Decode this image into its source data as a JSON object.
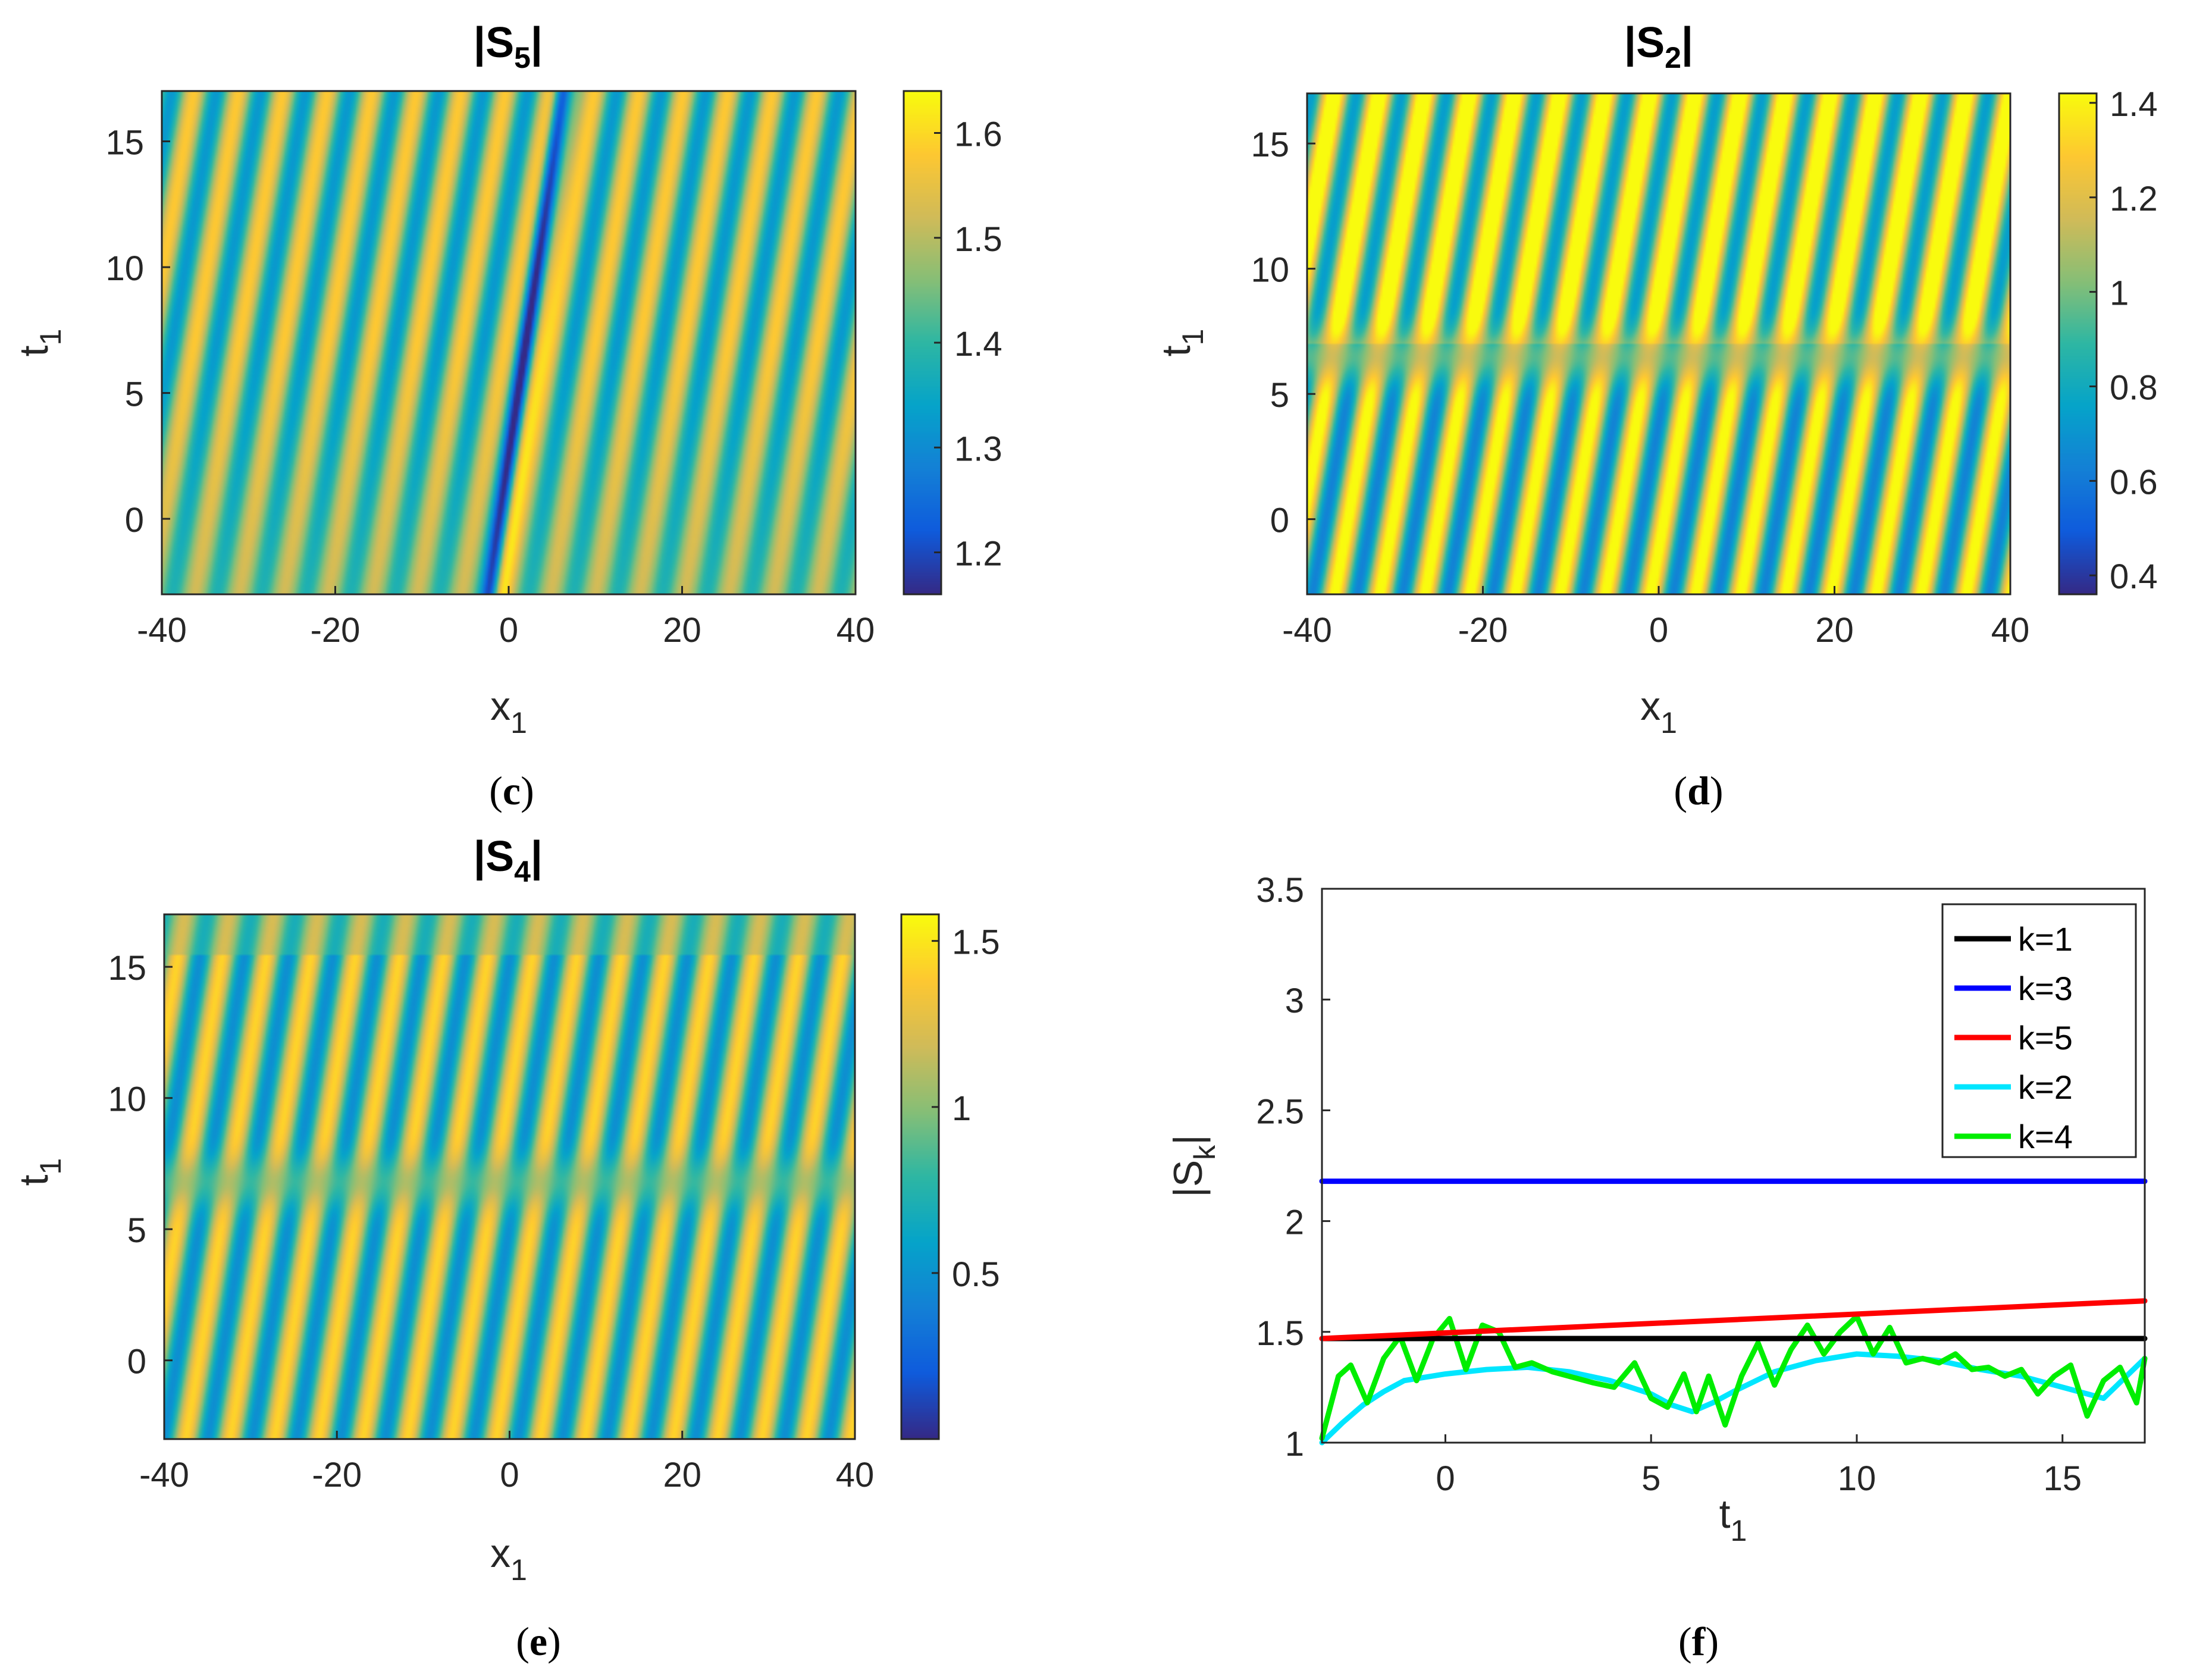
{
  "colors": {
    "parula": [
      "#352a87",
      "#0f5cdd",
      "#1481d6",
      "#06a4ca",
      "#2eb7a4",
      "#87bf77",
      "#d1bb59",
      "#fec832",
      "#f9fb0e"
    ],
    "axis": "#262626"
  },
  "chart_data": [
    {
      "type": "heatmap",
      "panel": "(c)",
      "panel_letter": "c",
      "title_base": "|S",
      "title_sub": "5",
      "title_end": "|",
      "x_label_base": "x",
      "x_label_sub": "1",
      "y_label_base": "t",
      "y_label_sub": "1",
      "x_range": [
        -40,
        40
      ],
      "y_range": [
        -3,
        17
      ],
      "x_ticks": [
        -40,
        -20,
        0,
        20,
        40
      ],
      "x_tick_labels": [
        "-40",
        "-20",
        "0",
        "20",
        "40"
      ],
      "y_ticks": [
        0,
        5,
        10,
        15
      ],
      "y_tick_labels": [
        "0",
        "5",
        "10",
        "15"
      ],
      "colorbar": {
        "range": [
          1.16,
          1.64
        ],
        "ticks": [
          1.2,
          1.3,
          1.4,
          1.5,
          1.6
        ],
        "tick_labels": [
          "1.2",
          "1.3",
          "1.4",
          "1.5",
          "1.6"
        ]
      },
      "field": {
        "base": 1.45,
        "amp": 0.13,
        "dark_line": true
      }
    },
    {
      "type": "heatmap",
      "panel": "(d)",
      "panel_letter": "d",
      "title_base": "|S",
      "title_sub": "2",
      "title_end": "|",
      "x_label_base": "x",
      "x_label_sub": "1",
      "y_label_base": "t",
      "y_label_sub": "1",
      "x_range": [
        -40,
        40
      ],
      "y_range": [
        -3,
        17
      ],
      "x_ticks": [
        -40,
        -20,
        0,
        20,
        40
      ],
      "x_tick_labels": [
        "-40",
        "-20",
        "0",
        "20",
        "40"
      ],
      "y_ticks": [
        0,
        5,
        10,
        15
      ],
      "y_tick_labels": [
        "0",
        "5",
        "10",
        "15"
      ],
      "colorbar": {
        "range": [
          0.36,
          1.42
        ],
        "ticks": [
          0.4,
          0.6,
          0.8,
          1.0,
          1.2,
          1.4
        ],
        "tick_labels": [
          "0.4",
          "0.6",
          "0.8",
          "1",
          "1.2",
          "1.4"
        ]
      },
      "field": {
        "base": 1.0,
        "amp": 0.42,
        "dark_line": false
      }
    },
    {
      "type": "heatmap",
      "panel": "(e)",
      "panel_letter": "e",
      "title_base": "|S",
      "title_sub": "4",
      "title_end": "|",
      "x_label_base": "x",
      "x_label_sub": "1",
      "y_label_base": "t",
      "y_label_sub": "1",
      "x_range": [
        -40,
        40
      ],
      "y_range": [
        -3,
        17
      ],
      "x_ticks": [
        -40,
        -20,
        0,
        20,
        40
      ],
      "x_tick_labels": [
        "-40",
        "-20",
        "0",
        "20",
        "40"
      ],
      "y_ticks": [
        0,
        5,
        10,
        15
      ],
      "y_tick_labels": [
        "0",
        "5",
        "10",
        "15"
      ],
      "colorbar": {
        "range": [
          0.0,
          1.58
        ],
        "ticks": [
          0.5,
          1.0,
          1.5
        ],
        "tick_labels": [
          "0.5",
          "1",
          "1.5"
        ]
      },
      "field": {
        "base": 0.95,
        "amp": 0.48,
        "dark_line": false
      }
    },
    {
      "type": "line",
      "panel": "(f)",
      "panel_letter": "f",
      "x_label_base": "t",
      "x_label_sub": "1",
      "y_label_base": "|S",
      "y_label_sub": "k",
      "y_label_end": "|",
      "xlim": [
        -3,
        17
      ],
      "ylim": [
        1,
        3.5
      ],
      "x_ticks": [
        0,
        5,
        10,
        15
      ],
      "x_tick_labels": [
        "0",
        "5",
        "10",
        "15"
      ],
      "y_ticks": [
        1,
        1.5,
        2,
        2.5,
        3,
        3.5
      ],
      "y_tick_labels": [
        "1",
        "1.5",
        "2",
        "2.5",
        "3",
        "3.5"
      ],
      "legend_position": "top-right",
      "series": [
        {
          "name": "k=1",
          "color": "#000000",
          "x": [
            -3,
            17
          ],
          "y": [
            1.47,
            1.47
          ]
        },
        {
          "name": "k=3",
          "color": "#0000ff",
          "x": [
            -3,
            17
          ],
          "y": [
            2.18,
            2.18
          ]
        },
        {
          "name": "k=5",
          "color": "#ff0000",
          "x": [
            -3,
            17
          ],
          "y": [
            1.47,
            1.64
          ]
        },
        {
          "name": "k=2",
          "color": "#00e6ff",
          "x": [
            -3,
            -2.5,
            -2,
            -1.5,
            -1,
            0,
            1,
            2,
            3,
            4,
            5,
            5.5,
            6,
            6.5,
            7,
            8,
            9,
            10,
            11,
            12,
            13,
            14,
            15,
            16,
            17
          ],
          "y": [
            1.0,
            1.09,
            1.17,
            1.23,
            1.28,
            1.31,
            1.33,
            1.34,
            1.32,
            1.28,
            1.22,
            1.17,
            1.14,
            1.18,
            1.23,
            1.32,
            1.37,
            1.4,
            1.39,
            1.37,
            1.33,
            1.3,
            1.25,
            1.2,
            1.38
          ]
        },
        {
          "name": "k=4",
          "color": "#00ee00",
          "x": [
            -3,
            -2.6,
            -2.3,
            -1.9,
            -1.5,
            -1.1,
            -0.7,
            -0.3,
            0.1,
            0.5,
            0.9,
            1.3,
            1.7,
            2.1,
            2.6,
            3.0,
            3.6,
            4.1,
            4.6,
            5.0,
            5.4,
            5.8,
            6.1,
            6.4,
            6.8,
            7.2,
            7.6,
            8.0,
            8.4,
            8.8,
            9.2,
            9.6,
            10.0,
            10.4,
            10.8,
            11.2,
            11.6,
            12.0,
            12.4,
            12.8,
            13.2,
            13.6,
            14.0,
            14.4,
            14.8,
            15.2,
            15.6,
            16.0,
            16.4,
            16.8,
            17.0
          ],
          "y": [
            1.02,
            1.3,
            1.35,
            1.18,
            1.38,
            1.48,
            1.28,
            1.47,
            1.56,
            1.33,
            1.53,
            1.5,
            1.34,
            1.36,
            1.32,
            1.3,
            1.27,
            1.25,
            1.36,
            1.2,
            1.16,
            1.31,
            1.14,
            1.3,
            1.08,
            1.3,
            1.45,
            1.26,
            1.42,
            1.53,
            1.4,
            1.5,
            1.57,
            1.4,
            1.52,
            1.36,
            1.38,
            1.36,
            1.4,
            1.33,
            1.34,
            1.3,
            1.33,
            1.22,
            1.3,
            1.35,
            1.12,
            1.28,
            1.34,
            1.18,
            1.38
          ]
        }
      ]
    }
  ]
}
